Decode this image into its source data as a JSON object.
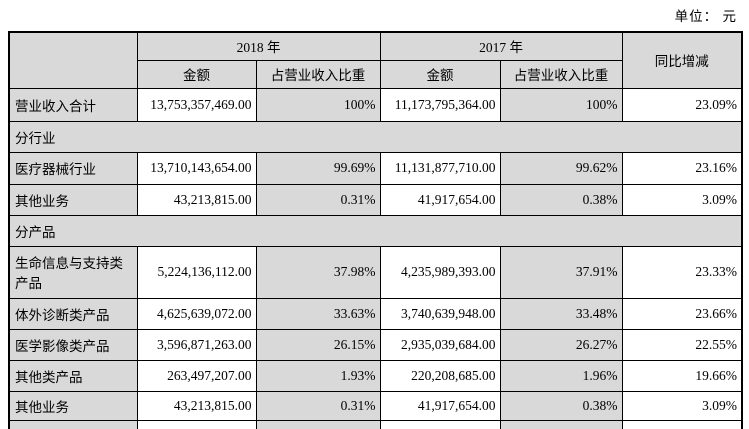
{
  "page": {
    "unit_label": "单位： 元"
  },
  "colors": {
    "header_bg": "#d9d9d9",
    "label_bg": "#d9d9d9",
    "ratio_bg": "#d9d9d9",
    "border": "#000000",
    "text": "#000000"
  },
  "table": {
    "headers": {
      "corner": "",
      "y2018": "2018 年",
      "y2017": "2017 年",
      "yoy": "同比增减",
      "amount_2018": "金额",
      "ratio_2018": "占营业收入比重",
      "amount_2017": "金额",
      "ratio_2017": "占营业收入比重"
    },
    "rows": [
      {
        "type": "data",
        "label": "营业收入合计",
        "amount_2018": "13,753,357,469.00",
        "ratio_2018": "100%",
        "amount_2017": "11,173,795,364.00",
        "ratio_2017": "100%",
        "yoy": "23.09%"
      },
      {
        "type": "section",
        "label": "分行业"
      },
      {
        "type": "data",
        "label": "医疗器械行业",
        "amount_2018": "13,710,143,654.00",
        "ratio_2018": "99.69%",
        "amount_2017": "11,131,877,710.00",
        "ratio_2017": "99.62%",
        "yoy": "23.16%"
      },
      {
        "type": "data",
        "label": "其他业务",
        "amount_2018": "43,213,815.00",
        "ratio_2018": "0.31%",
        "amount_2017": "41,917,654.00",
        "ratio_2017": "0.38%",
        "yoy": "3.09%"
      },
      {
        "type": "section",
        "label": "分产品"
      },
      {
        "type": "data",
        "label": "生命信息与支持类产品",
        "amount_2018": "5,224,136,112.00",
        "ratio_2018": "37.98%",
        "amount_2017": "4,235,989,393.00",
        "ratio_2017": "37.91%",
        "yoy": "23.33%"
      },
      {
        "type": "data",
        "label": "体外诊断类产品",
        "amount_2018": "4,625,639,072.00",
        "ratio_2018": "33.63%",
        "amount_2017": "3,740,639,948.00",
        "ratio_2017": "33.48%",
        "yoy": "23.66%"
      },
      {
        "type": "data",
        "label": "医学影像类产品",
        "amount_2018": "3,596,871,263.00",
        "ratio_2018": "26.15%",
        "amount_2017": "2,935,039,684.00",
        "ratio_2017": "26.27%",
        "yoy": "22.55%"
      },
      {
        "type": "data",
        "label": "其他类产品",
        "amount_2018": "263,497,207.00",
        "ratio_2018": "1.93%",
        "amount_2017": "220,208,685.00",
        "ratio_2017": "1.96%",
        "yoy": "19.66%"
      },
      {
        "type": "data",
        "label": "其他业务",
        "amount_2018": "43,213,815.00",
        "ratio_2018": "0.31%",
        "amount_2017": "41,917,654.00",
        "ratio_2017": "0.38%",
        "yoy": "3.09%"
      }
    ]
  }
}
